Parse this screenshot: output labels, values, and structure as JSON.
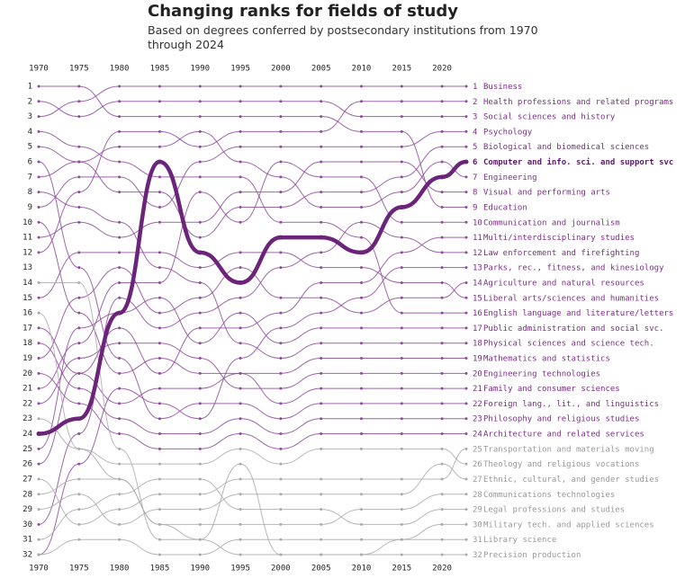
{
  "chart_data": {
    "type": "bump",
    "title": "Changing ranks for fields of study",
    "subtitle": "Based on degrees conferred by postsecondary institutions from 1970 through 2024",
    "x": [
      1970,
      1975,
      1980,
      1985,
      1990,
      1995,
      2000,
      2005,
      2010,
      2015,
      2020,
      2023
    ],
    "xlim": [
      1970,
      2023
    ],
    "xticks": [
      1970,
      1975,
      1980,
      1985,
      1990,
      1995,
      2000,
      2005,
      2010,
      2015,
      2020
    ],
    "ylim": [
      1,
      32
    ],
    "yticks": [
      1,
      2,
      3,
      4,
      5,
      6,
      7,
      8,
      9,
      10,
      11,
      12,
      13,
      14,
      15,
      16,
      17,
      18,
      19,
      20,
      21,
      22,
      23,
      24,
      25,
      26,
      27,
      28,
      29,
      30,
      31,
      32
    ],
    "series": [
      {
        "name": "Business",
        "color": "#8e4a9c",
        "values": [
          3,
          2,
          1,
          1,
          1,
          1,
          1,
          1,
          1,
          1,
          1,
          1
        ]
      },
      {
        "name": "Health professions and related programs",
        "color": "#8e4a9c",
        "values": [
          12,
          8,
          4,
          4,
          5,
          4,
          4,
          4,
          2,
          2,
          2,
          2
        ]
      },
      {
        "name": "Social sciences and history",
        "color": "#8e4a9c",
        "values": [
          2,
          3,
          2,
          2,
          2,
          2,
          2,
          2,
          3,
          3,
          3,
          3
        ]
      },
      {
        "name": "Psychology",
        "color": "#8e4a9c",
        "values": [
          9,
          7,
          7,
          9,
          6,
          5,
          5,
          5,
          5,
          5,
          4,
          4
        ]
      },
      {
        "name": "Biological and biomedical sciences",
        "color": "#8e4a9c",
        "values": [
          5,
          6,
          8,
          8,
          11,
          9,
          9,
          8,
          8,
          7,
          5,
          5
        ]
      },
      {
        "name": "Computer and info. sci. and support svc",
        "color": "#6b2479",
        "highlight": true,
        "values": [
          24,
          23,
          16,
          6,
          12,
          14,
          11,
          11,
          12,
          9,
          7,
          6
        ]
      },
      {
        "name": "Engineering",
        "color": "#8e4a9c",
        "values": [
          7,
          6,
          5,
          5,
          4,
          6,
          7,
          9,
          9,
          8,
          6,
          7
        ]
      },
      {
        "name": "Visual and performing arts",
        "color": "#8e4a9c",
        "values": [
          11,
          10,
          11,
          10,
          10,
          8,
          8,
          6,
          6,
          6,
          8,
          8
        ]
      },
      {
        "name": "Education",
        "color": "#8e4a9c",
        "values": [
          1,
          1,
          3,
          3,
          3,
          3,
          3,
          3,
          4,
          4,
          9,
          9
        ]
      },
      {
        "name": "Communication and journalism",
        "color": "#8e4a9c",
        "values": [
          21,
          18,
          14,
          14,
          8,
          10,
          6,
          7,
          7,
          10,
          10,
          10
        ]
      },
      {
        "name": "Multi/interdisciplinary studies",
        "color": "#8e4a9c",
        "values": [
          26,
          20,
          17,
          20,
          17,
          17,
          16,
          14,
          14,
          12,
          11,
          11
        ]
      },
      {
        "name": "Law enforcement and firefighting",
        "color": "#8e4a9c",
        "values": [
          30,
          24,
          15,
          17,
          16,
          15,
          13,
          12,
          10,
          11,
          12,
          12
        ]
      },
      {
        "name": "Parks, rec., fitness, and kinesiology",
        "color": "#8e4a9c",
        "values": [
          32,
          26,
          21,
          22,
          23,
          19,
          17,
          16,
          15,
          13,
          13,
          13
        ]
      },
      {
        "name": "Agriculture and natural resources",
        "color": "#8e4a9c",
        "values": [
          19,
          15,
          13,
          16,
          15,
          13,
          15,
          15,
          16,
          15,
          15,
          14
        ]
      },
      {
        "name": "Liberal arts/sciences and humanities",
        "color": "#8e4a9c",
        "values": [
          15,
          12,
          12,
          12,
          13,
          12,
          12,
          13,
          13,
          14,
          14,
          15
        ]
      },
      {
        "name": "English language and literature/letters",
        "color": "#8e4a9c",
        "values": [
          4,
          5,
          6,
          7,
          7,
          7,
          10,
          10,
          11,
          16,
          16,
          16
        ]
      },
      {
        "name": "Public administration and social svc.",
        "color": "#8e4a9c",
        "values": [
          25,
          17,
          16,
          15,
          18,
          16,
          18,
          17,
          17,
          17,
          17,
          17
        ]
      },
      {
        "name": "Physical sciences and science tech.",
        "color": "#8e4a9c",
        "values": [
          8,
          9,
          10,
          13,
          14,
          18,
          19,
          18,
          18,
          18,
          18,
          18
        ]
      },
      {
        "name": "Mathematics and statistics",
        "color": "#8e4a9c",
        "values": [
          10,
          16,
          20,
          19,
          20,
          20,
          20,
          19,
          19,
          19,
          19,
          19
        ]
      },
      {
        "name": "Engineering technologies",
        "color": "#8e4a9c",
        "values": [
          22,
          19,
          18,
          18,
          19,
          21,
          21,
          20,
          20,
          20,
          20,
          20
        ]
      },
      {
        "name": "Family and consumer sciences",
        "color": "#8e4a9c",
        "values": [
          17,
          20,
          22,
          21,
          21,
          20,
          22,
          21,
          21,
          21,
          21,
          21
        ]
      },
      {
        "name": "Foreign lang., lit., and linguistics",
        "color": "#8e4a9c",
        "values": [
          6,
          13,
          19,
          23,
          22,
          22,
          23,
          22,
          22,
          22,
          22,
          22
        ]
      },
      {
        "name": "Philosophy and religious studies",
        "color": "#8e4a9c",
        "values": [
          18,
          21,
          23,
          24,
          24,
          23,
          24,
          23,
          23,
          23,
          23,
          23
        ]
      },
      {
        "name": "Architecture and related services",
        "color": "#8e4a9c",
        "values": [
          20,
          22,
          24,
          25,
          25,
          24,
          25,
          24,
          24,
          24,
          24,
          24
        ]
      },
      {
        "name": "Transportation and materials moving",
        "color": "#aaaaaa",
        "values": [
          27,
          30,
          29,
          28,
          28,
          27,
          27,
          27,
          27,
          27,
          27,
          25
        ]
      },
      {
        "name": "Theology and religious vocations",
        "color": "#aaaaaa",
        "values": [
          23,
          25,
          26,
          26,
          26,
          25,
          26,
          25,
          25,
          25,
          25,
          26
        ]
      },
      {
        "name": "Ethnic, cultural, and gender studies",
        "color": "#aaaaaa",
        "values": [
          29,
          28,
          30,
          29,
          29,
          28,
          28,
          28,
          28,
          28,
          26,
          27
        ]
      },
      {
        "name": "Communications technologies",
        "color": "#aaaaaa",
        "values": [
          28,
          27,
          27,
          30,
          30,
          30,
          30,
          30,
          29,
          29,
          28,
          28
        ]
      },
      {
        "name": "Legal professions and studies",
        "color": "#aaaaaa",
        "values": [
          31,
          29,
          28,
          27,
          27,
          29,
          29,
          29,
          30,
          30,
          29,
          29
        ]
      },
      {
        "name": "Military tech. and applied sciences",
        "color": "#aaaaaa",
        "values": [
          32,
          31,
          31,
          32,
          32,
          31,
          31,
          31,
          31,
          31,
          30,
          30
        ]
      },
      {
        "name": "Library science",
        "color": "#aaaaaa",
        "values": [
          14,
          14,
          25,
          31,
          31,
          32,
          32,
          32,
          32,
          31,
          31,
          31
        ]
      },
      {
        "name": "Precision production",
        "color": "#aaaaaa",
        "values": [
          16,
          25,
          27,
          30,
          31,
          26,
          32,
          32,
          32,
          32,
          32,
          32
        ]
      }
    ]
  }
}
